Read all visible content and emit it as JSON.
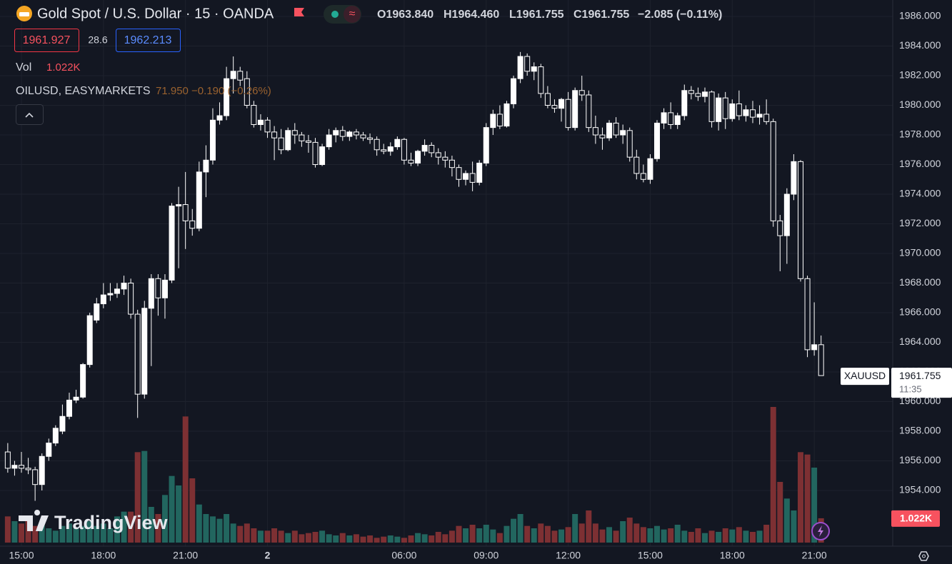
{
  "header": {
    "title": "Gold Spot / U.S. Dollar · 15 · OANDA",
    "open": "O1963.840",
    "high": "H1964.460",
    "low": "L1961.755",
    "close": "C1961.755",
    "change": "−2.085 (−0.11%)",
    "bid": "1961.927",
    "spread": "28.6",
    "ask": "1962.213",
    "volume_label": "Vol",
    "indicator_name": "OILUSD, EASYMARKETS",
    "indicator_values": "71.950 −0.190 (−0.26%)",
    "brand": "TradingView"
  },
  "chart_data": {
    "type": "candlestick",
    "categories": [
      null,
      null,
      "15:00",
      null,
      null,
      null,
      null,
      null,
      null,
      null,
      null,
      null,
      null,
      null,
      "18:00",
      null,
      null,
      null,
      null,
      null,
      null,
      null,
      null,
      null,
      null,
      null,
      "21:00",
      null,
      null,
      null,
      null,
      null,
      null,
      null,
      null,
      null,
      null,
      null,
      "2",
      null,
      null,
      null,
      null,
      null,
      null,
      null,
      null,
      null,
      null,
      null,
      null,
      null,
      null,
      null,
      null,
      null,
      null,
      null,
      "06:00",
      null,
      null,
      null,
      null,
      null,
      null,
      null,
      null,
      null,
      null,
      null,
      "09:00",
      null,
      null,
      null,
      null,
      null,
      null,
      null,
      null,
      null,
      null,
      null,
      "12:00",
      null,
      null,
      null,
      null,
      null,
      null,
      null,
      null,
      null,
      null,
      null,
      "15:00",
      null,
      null,
      null,
      null,
      null,
      null,
      null,
      null,
      null,
      null,
      null,
      "18:00",
      null,
      null,
      null,
      null,
      null,
      null,
      null,
      null,
      null,
      null,
      null,
      "21:00",
      null
    ],
    "series": [
      {
        "name": "XAUUSD",
        "up_color": "#ffffff",
        "down_color": "#131722",
        "wick_color": "#ffffff",
        "open": [
          1956.6,
          1955.5,
          1955.7,
          1955.5,
          1955.4,
          1954.4,
          1956.3,
          1957.2,
          1958.0,
          1959.0,
          1960.1,
          1960.3,
          1962.5,
          1965.5,
          1966.6,
          1967.2,
          1967.3,
          1967.6,
          1968.0,
          1965.9,
          1960.5,
          1966.3,
          1968.3,
          1967.0,
          1968.2,
          1973.2,
          1973.3,
          1972.2,
          1971.7,
          1975.5,
          1976.3,
          1979.0,
          1979.3,
          1981.8,
          1982.3,
          1981.8,
          1980.0,
          1978.7,
          1979.0,
          1978.2,
          1977.8,
          1977.0,
          1978.3,
          1978.0,
          1977.6,
          1977.5,
          1976.0,
          1977.2,
          1978.0,
          1978.3,
          1977.9,
          1978.2,
          1978.0,
          1977.8,
          1977.7,
          1977.0,
          1976.9,
          1977.2,
          1977.7,
          1976.3,
          1976.1,
          1976.9,
          1977.3,
          1976.8,
          1976.5,
          1976.3,
          1975.8,
          1975.0,
          1975.4,
          1974.8,
          1976.1,
          1978.5,
          1979.4,
          1978.6,
          1980.1,
          1981.8,
          1983.3,
          1982.3,
          1982.6,
          1980.8,
          1980.0,
          1979.8,
          1980.4,
          1978.5,
          1981.0,
          1980.7,
          1978.5,
          1978.0,
          1977.8,
          1978.8,
          1978.0,
          1978.3,
          1976.5,
          1975.4,
          1975.0,
          1976.4,
          1978.8,
          1979.5,
          1978.7,
          1979.3,
          1981.0,
          1980.8,
          1980.6,
          1980.9,
          1978.9,
          1980.5,
          1979.1,
          1980.1,
          1979.3,
          1979.7,
          1979.2,
          1979.4,
          1978.9,
          1972.2,
          1971.2,
          1974.0,
          1976.2,
          1968.3,
          1963.5,
          1963.84
        ],
        "high": [
          1957.2,
          1956.0,
          1956.6,
          1956.2,
          1955.6,
          1956.5,
          1957.5,
          1958.4,
          1959.8,
          1960.6,
          1960.8,
          1962.6,
          1966.0,
          1967.0,
          1968.0,
          1968.0,
          1968.0,
          1968.5,
          1968.3,
          1966.2,
          1966.8,
          1968.6,
          1968.6,
          1968.6,
          1973.4,
          1974.5,
          1975.5,
          1973.0,
          1976.2,
          1977.3,
          1979.8,
          1980.2,
          1982.6,
          1983.3,
          1982.6,
          1982.3,
          1980.3,
          1979.4,
          1979.2,
          1978.6,
          1978.4,
          1978.5,
          1978.8,
          1978.2,
          1978.0,
          1977.8,
          1977.4,
          1978.4,
          1978.5,
          1978.6,
          1978.3,
          1978.4,
          1978.2,
          1978.1,
          1977.9,
          1977.4,
          1977.5,
          1977.9,
          1977.8,
          1976.8,
          1977.0,
          1977.7,
          1977.5,
          1977.1,
          1976.9,
          1976.6,
          1976.0,
          1975.6,
          1976.2,
          1976.3,
          1978.8,
          1979.7,
          1980.0,
          1980.3,
          1982.0,
          1983.6,
          1983.5,
          1982.9,
          1982.8,
          1981.3,
          1980.4,
          1980.5,
          1980.9,
          1981.2,
          1982.0,
          1981.0,
          1979.3,
          1978.5,
          1979.0,
          1979.2,
          1978.7,
          1978.5,
          1977.0,
          1976.0,
          1976.7,
          1979.0,
          1979.8,
          1980.2,
          1979.5,
          1981.4,
          1981.3,
          1981.2,
          1981.2,
          1981.0,
          1980.8,
          1980.9,
          1980.4,
          1981.0,
          1980.0,
          1980.3,
          1980.0,
          1980.4,
          1979.1,
          1972.6,
          1974.4,
          1976.7,
          1976.3,
          1968.5,
          1966.7,
          1964.46
        ],
        "low": [
          1955.2,
          1955.0,
          1955.2,
          1955.1,
          1953.3,
          1954.0,
          1956.0,
          1957.0,
          1957.8,
          1958.8,
          1959.9,
          1960.2,
          1962.3,
          1965.3,
          1966.3,
          1966.8,
          1967.0,
          1967.2,
          1965.6,
          1958.9,
          1960.2,
          1962.4,
          1965.8,
          1965.6,
          1968.0,
          1969.0,
          1970.3,
          1971.2,
          1971.5,
          1973.8,
          1976.0,
          1978.7,
          1979.0,
          1980.8,
          1981.3,
          1979.8,
          1978.5,
          1978.3,
          1977.8,
          1976.3,
          1976.7,
          1976.9,
          1977.4,
          1977.2,
          1976.8,
          1975.8,
          1975.9,
          1977.0,
          1977.5,
          1977.6,
          1977.6,
          1977.7,
          1977.6,
          1977.4,
          1976.6,
          1976.7,
          1976.6,
          1977.0,
          1976.0,
          1975.9,
          1975.9,
          1976.6,
          1976.5,
          1976.0,
          1975.8,
          1975.2,
          1974.5,
          1974.6,
          1974.2,
          1974.6,
          1975.9,
          1978.0,
          1978.4,
          1978.5,
          1979.8,
          1981.5,
          1982.0,
          1981.7,
          1980.5,
          1979.8,
          1979.5,
          1978.9,
          1978.3,
          1978.3,
          1980.3,
          1978.2,
          1977.4,
          1977.0,
          1977.6,
          1977.8,
          1977.4,
          1976.2,
          1975.0,
          1974.8,
          1974.7,
          1976.2,
          1978.4,
          1978.4,
          1978.4,
          1979.0,
          1980.4,
          1980.3,
          1980.2,
          1978.5,
          1978.3,
          1978.4,
          1978.9,
          1979.0,
          1978.9,
          1978.8,
          1978.7,
          1978.7,
          1971.8,
          1968.8,
          1969.3,
          1973.6,
          1968.1,
          1963.0,
          1963.1,
          1961.755
        ],
        "close": [
          1955.5,
          1955.7,
          1955.5,
          1955.4,
          1954.4,
          1956.3,
          1957.2,
          1958.2,
          1959.0,
          1960.1,
          1960.3,
          1962.5,
          1965.8,
          1966.6,
          1967.2,
          1967.3,
          1967.6,
          1968.0,
          1965.9,
          1960.5,
          1966.3,
          1968.3,
          1967.0,
          1968.2,
          1973.2,
          1973.3,
          1972.2,
          1971.7,
          1975.5,
          1976.3,
          1979.0,
          1979.3,
          1981.8,
          1982.3,
          1981.7,
          1980.0,
          1978.7,
          1979.0,
          1978.2,
          1977.8,
          1977.0,
          1978.3,
          1978.0,
          1977.6,
          1977.5,
          1976.0,
          1977.2,
          1978.0,
          1978.3,
          1977.9,
          1978.2,
          1978.0,
          1977.8,
          1977.7,
          1977.0,
          1976.9,
          1977.2,
          1977.7,
          1976.3,
          1976.1,
          1976.9,
          1977.3,
          1976.8,
          1976.5,
          1976.3,
          1975.8,
          1975.0,
          1975.4,
          1974.8,
          1976.1,
          1978.5,
          1979.4,
          1978.6,
          1980.1,
          1981.8,
          1983.3,
          1982.3,
          1982.6,
          1980.8,
          1980.0,
          1979.8,
          1980.4,
          1978.5,
          1981.0,
          1980.7,
          1978.5,
          1978.0,
          1977.8,
          1978.8,
          1978.0,
          1978.3,
          1976.5,
          1975.4,
          1975.0,
          1976.4,
          1978.8,
          1979.5,
          1978.7,
          1979.3,
          1981.0,
          1980.8,
          1980.6,
          1980.9,
          1978.9,
          1980.5,
          1979.1,
          1980.1,
          1979.3,
          1979.7,
          1979.2,
          1979.4,
          1978.9,
          1972.2,
          1971.2,
          1974.0,
          1976.2,
          1968.3,
          1963.5,
          1963.84,
          1961.755
        ]
      }
    ],
    "volume": {
      "values": [
        1100,
        900,
        800,
        1000,
        700,
        800,
        600,
        500,
        700,
        800,
        600,
        700,
        900,
        700,
        800,
        600,
        1100,
        1300,
        1300,
        3800,
        3850,
        1500,
        1200,
        2000,
        2800,
        2400,
        5300,
        2700,
        1600,
        1200,
        1100,
        1000,
        1200,
        800,
        700,
        800,
        600,
        500,
        500,
        600,
        500,
        400,
        500,
        350,
        400,
        450,
        500,
        350,
        300,
        400,
        300,
        350,
        250,
        300,
        200,
        250,
        300,
        250,
        200,
        300,
        400,
        350,
        300,
        450,
        350,
        500,
        700,
        600,
        750,
        600,
        750,
        550,
        400,
        700,
        1000,
        1200,
        700,
        600,
        800,
        700,
        500,
        550,
        650,
        1200,
        800,
        1350,
        800,
        550,
        650,
        500,
        900,
        1050,
        800,
        650,
        600,
        700,
        550,
        600,
        750,
        500,
        450,
        600,
        400,
        500,
        450,
        600,
        550,
        650,
        500,
        450,
        500,
        750,
        5700,
        2550,
        1850,
        1350,
        3800,
        3700,
        3150,
        1022
      ],
      "value_label": "1.022K",
      "up_color": "#22665f",
      "down_color": "#7d3033",
      "label_color": "#f7525f"
    },
    "ylim": [
      1950.24,
      1987.11
    ],
    "yticks": [
      {
        "value": 1954,
        "label": "1954.000"
      },
      {
        "value": 1956,
        "label": "1956.000"
      },
      {
        "value": 1958,
        "label": "1958.000"
      },
      {
        "value": 1960,
        "label": "1960.000"
      },
      {
        "value": 1962,
        "label": "1962.000"
      },
      {
        "value": 1964,
        "label": "1964.000"
      },
      {
        "value": 1966,
        "label": "1966.000"
      },
      {
        "value": 1968,
        "label": "1968.000"
      },
      {
        "value": 1970,
        "label": "1970.000"
      },
      {
        "value": 1972,
        "label": "1972.000"
      },
      {
        "value": 1974,
        "label": "1974.000"
      },
      {
        "value": 1976,
        "label": "1976.000"
      },
      {
        "value": 1978,
        "label": "1978.000"
      },
      {
        "value": 1980,
        "label": "1980.000"
      },
      {
        "value": 1982,
        "label": "1982.000"
      },
      {
        "value": 1984,
        "label": "1984.000"
      },
      {
        "value": 1986,
        "label": "1986.000"
      }
    ],
    "grid": true,
    "last_price": {
      "symbol": "XAUUSD",
      "value": 1961.755,
      "countdown": "11:35"
    }
  }
}
